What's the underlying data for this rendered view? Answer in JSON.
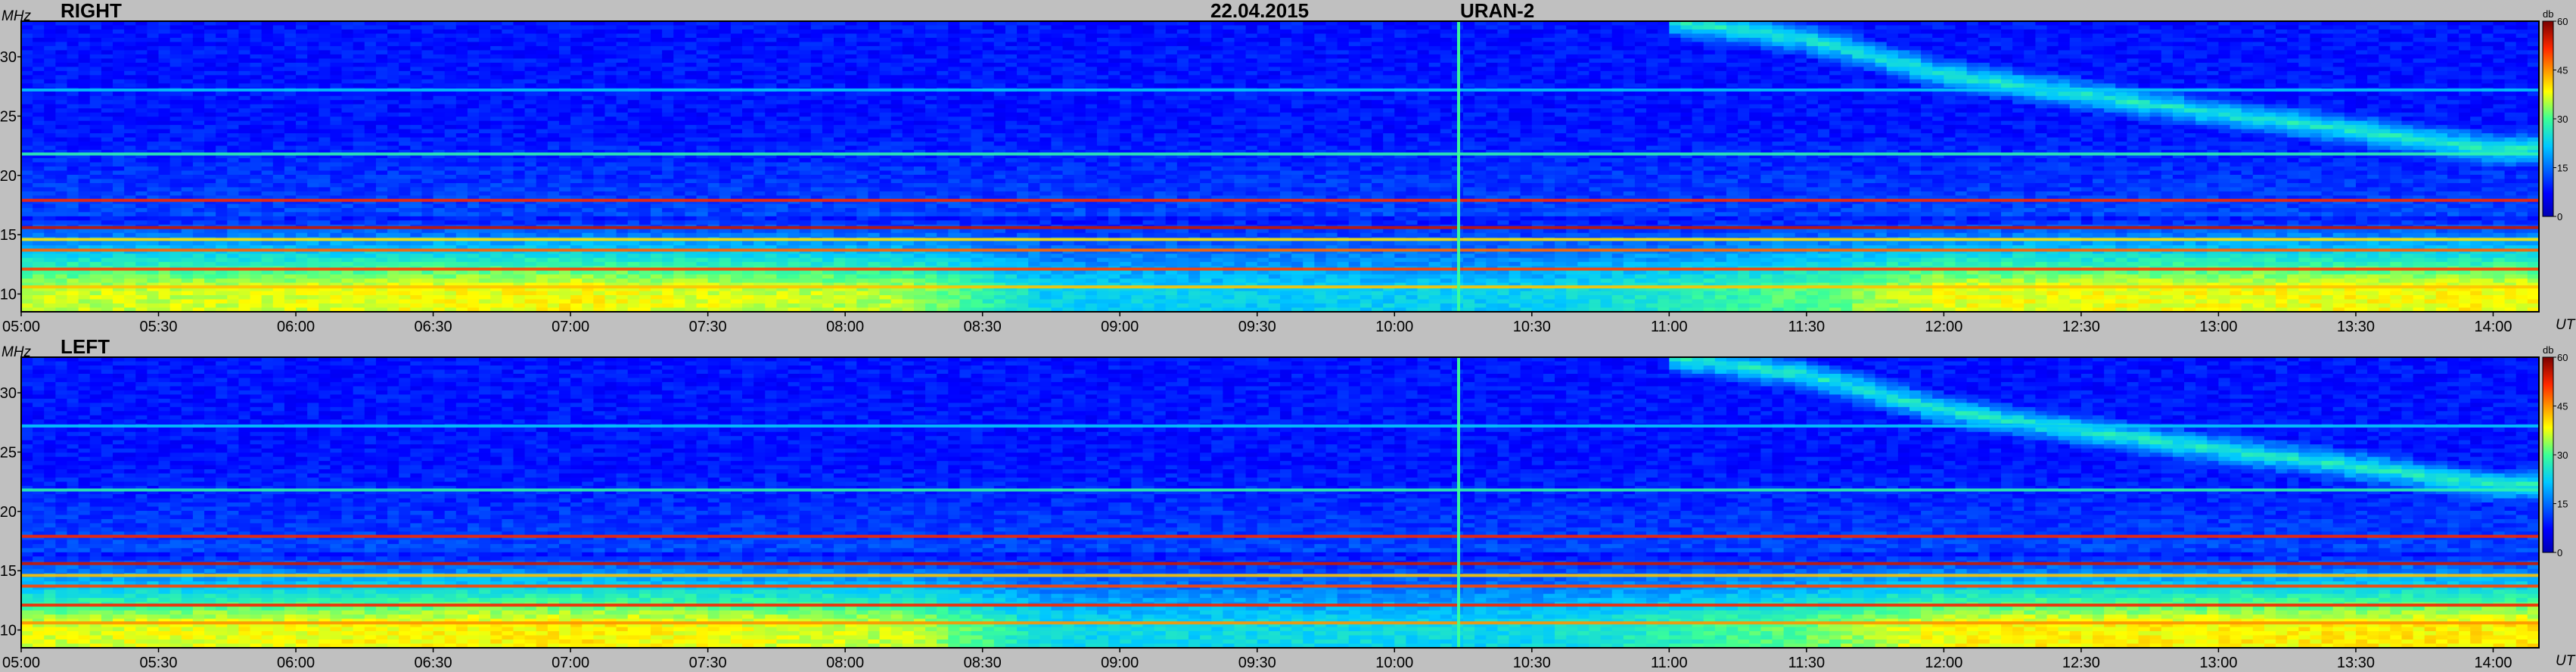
{
  "header": {
    "date": "22.04.2015",
    "instrument": "URAN-2"
  },
  "colors": {
    "background": "#c0c0c0",
    "plot_frame": "#000000",
    "sky_blue": "#0a5cf0"
  },
  "colorbar": {
    "unit": "db",
    "ticks": [
      0,
      15,
      30,
      45,
      60
    ],
    "range": [
      0,
      60
    ],
    "colormap": "jet"
  },
  "chart_data": [
    {
      "type": "heatmap",
      "panel": "RIGHT",
      "title": "RIGHT",
      "ylabel": "MHz",
      "xlabel": "UT",
      "yticks": [
        10,
        15,
        20,
        25,
        30
      ],
      "ylim": [
        8.5,
        33
      ],
      "xticks": [
        "05:00",
        "05:30",
        "06:00",
        "06:30",
        "07:00",
        "07:30",
        "08:00",
        "08:30",
        "09:00",
        "09:30",
        "10:00",
        "10:30",
        "11:00",
        "11:30",
        "12:00",
        "12:30",
        "13:00",
        "13:30",
        "14:00"
      ],
      "xlim": [
        "05:00",
        "14:10"
      ],
      "colorbar_label": "db",
      "colorbar_range": [
        0,
        60
      ],
      "features": {
        "narrowband_lines_MHz": [
          {
            "freq": 17.9,
            "intensity_db": 52
          },
          {
            "freq": 15.6,
            "intensity_db": 55
          },
          {
            "freq": 14.6,
            "intensity_db": 40
          },
          {
            "freq": 13.7,
            "intensity_db": 48
          },
          {
            "freq": 12.1,
            "intensity_db": 50
          },
          {
            "freq": 10.6,
            "intensity_db": 42
          },
          {
            "freq": 21.8,
            "intensity_db": 28
          },
          {
            "freq": 27.2,
            "intensity_db": 22
          }
        ],
        "low_freq_enhancement": [
          {
            "time": "05:00",
            "db": 33
          },
          {
            "time": "07:00",
            "db": 36
          },
          {
            "time": "08:15",
            "db": 32
          },
          {
            "time": "08:45",
            "db": 20
          },
          {
            "time": "10:30",
            "db": 20
          },
          {
            "time": "11:30",
            "db": 28
          },
          {
            "time": "12:00",
            "db": 35
          },
          {
            "time": "14:10",
            "db": 36
          }
        ],
        "drifting_band": [
          {
            "time": "11:00",
            "freq": 33
          },
          {
            "time": "11:30",
            "freq": 31.5
          },
          {
            "time": "12:00",
            "freq": 28.5
          },
          {
            "time": "12:30",
            "freq": 26.8
          },
          {
            "time": "13:00",
            "freq": 25.2
          },
          {
            "time": "13:30",
            "freq": 23.8
          },
          {
            "time": "14:00",
            "freq": 22.2
          }
        ],
        "vertical_burst_time": "10:14"
      }
    },
    {
      "type": "heatmap",
      "panel": "LEFT",
      "title": "LEFT",
      "ylabel": "MHz",
      "xlabel": "UT",
      "yticks": [
        10,
        15,
        20,
        25,
        30
      ],
      "ylim": [
        8.5,
        33
      ],
      "xticks": [
        "05:00",
        "05:30",
        "06:00",
        "06:30",
        "07:00",
        "07:30",
        "08:00",
        "08:30",
        "09:00",
        "09:30",
        "10:00",
        "10:30",
        "11:00",
        "11:30",
        "12:00",
        "12:30",
        "13:00",
        "13:30",
        "14:00"
      ],
      "xlim": [
        "05:00",
        "14:10"
      ],
      "colorbar_label": "db",
      "colorbar_range": [
        0,
        60
      ],
      "features": {
        "narrowband_lines_MHz": [
          {
            "freq": 17.9,
            "intensity_db": 52
          },
          {
            "freq": 15.6,
            "intensity_db": 55
          },
          {
            "freq": 14.6,
            "intensity_db": 42
          },
          {
            "freq": 13.7,
            "intensity_db": 50
          },
          {
            "freq": 12.1,
            "intensity_db": 52
          },
          {
            "freq": 10.6,
            "intensity_db": 45
          },
          {
            "freq": 21.8,
            "intensity_db": 28
          },
          {
            "freq": 27.2,
            "intensity_db": 22
          }
        ],
        "low_freq_enhancement": [
          {
            "time": "05:00",
            "db": 34
          },
          {
            "time": "07:00",
            "db": 37
          },
          {
            "time": "08:15",
            "db": 33
          },
          {
            "time": "08:45",
            "db": 21
          },
          {
            "time": "10:30",
            "db": 21
          },
          {
            "time": "11:30",
            "db": 29
          },
          {
            "time": "12:00",
            "db": 36
          },
          {
            "time": "14:10",
            "db": 37
          }
        ],
        "drifting_band": [
          {
            "time": "11:00",
            "freq": 33
          },
          {
            "time": "11:30",
            "freq": 31.5
          },
          {
            "time": "12:00",
            "freq": 28.5
          },
          {
            "time": "12:30",
            "freq": 26.8
          },
          {
            "time": "13:00",
            "freq": 25.2
          },
          {
            "time": "13:30",
            "freq": 23.8
          },
          {
            "time": "14:00",
            "freq": 22.2
          }
        ],
        "vertical_burst_time": "10:14"
      }
    }
  ]
}
